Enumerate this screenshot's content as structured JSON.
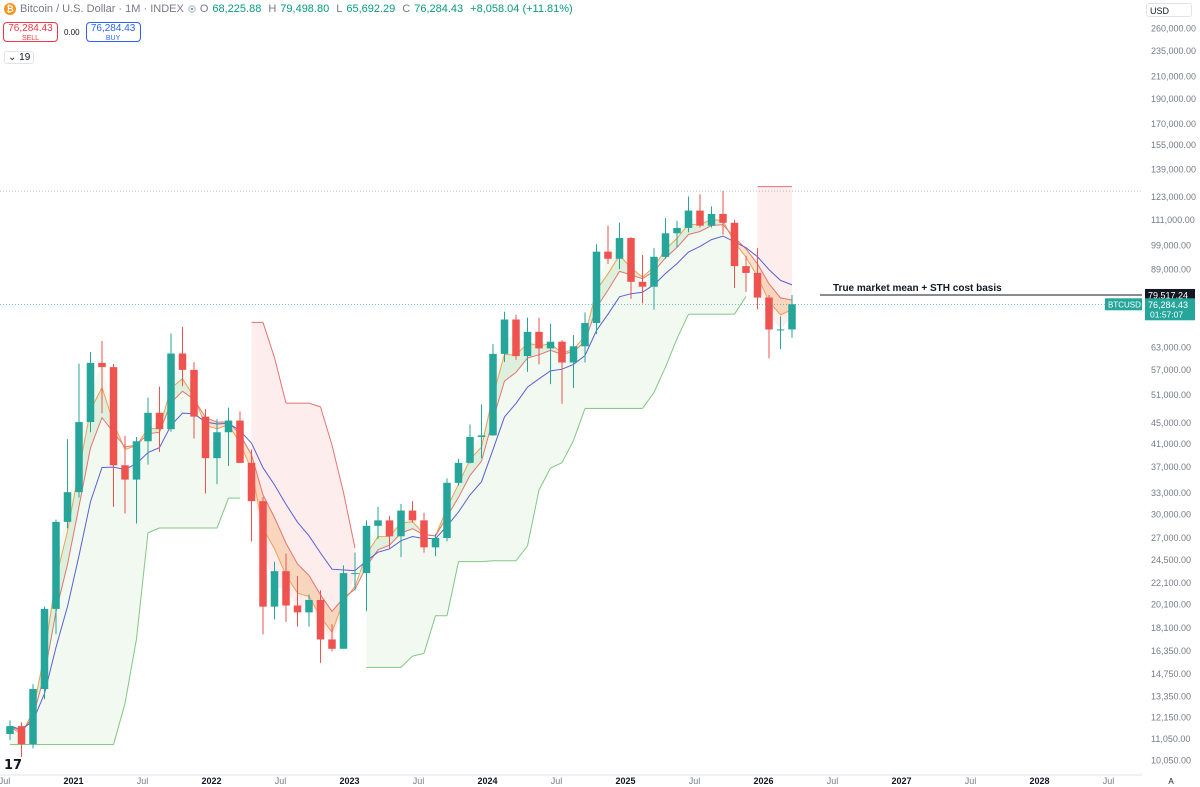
{
  "header": {
    "symbol": "Bitcoin / U.S. Dollar · 1M · INDEX",
    "open_label": "O",
    "open": "68,225.88",
    "high_label": "H",
    "high": "79,498.80",
    "low_label": "L",
    "low": "65,692.29",
    "close_label": "C",
    "close": "76,284.43",
    "change": "+8,058.04 (+11.81%)",
    "currency": "USD",
    "indicator_value": "19"
  },
  "trade": {
    "sell_price": "76,284.43",
    "sell_label": "SELL",
    "spread": "0.00",
    "buy_price": "76,284.43",
    "buy_label": "BUY"
  },
  "colors": {
    "up": "#26a69a",
    "down": "#ef5350",
    "blue_ma": "#5b5fd6",
    "red_ma": "#e57373",
    "orange_ma": "#f0a050",
    "green_band": "#81c784"
  },
  "chart_data": {
    "type": "candlestick",
    "yscale": "log",
    "ylim": [
      9500,
      295000
    ],
    "x_axis": [
      "Jul",
      "2021",
      "Jul",
      "2022",
      "Jul",
      "2023",
      "Jul",
      "2024",
      "Jul",
      "2025",
      "Jul",
      "2026",
      "Jul",
      "2027",
      "Jul",
      "2028",
      "Jul"
    ],
    "y_axis": [
      "260,000.00",
      "235,000.00",
      "210,000.00",
      "190,000.00",
      "170,000.00",
      "155,000.00",
      "139,000.00",
      "123,000.00",
      "111,000.00",
      "99,000.00",
      "89,000.00",
      "79,517.24",
      "63,000.00",
      "57,000.00",
      "51,000.00",
      "45,000.00",
      "41,000.00",
      "37,000.00",
      "33,000.00",
      "30,000.00",
      "27,000.00",
      "24,500.00",
      "22,100.00",
      "20,100.00",
      "18,100.00",
      "16,350.00",
      "14,750.00",
      "13,350.00",
      "12,150.00",
      "11,050.00",
      "10,050.00"
    ],
    "annotation": "True market mean + STH cost basis",
    "annotation_price": "79,517.24",
    "last_price_symbol": "BTCUSD",
    "last_price": "76,284.43",
    "countdown": "01:57:07",
    "log_label": "A",
    "start": "2020-08",
    "candles": [
      [
        11300,
        12000,
        11000,
        11700
      ],
      [
        11700,
        11900,
        10200,
        10800
      ],
      [
        10800,
        14100,
        10600,
        13800
      ],
      [
        13800,
        19900,
        13200,
        19700
      ],
      [
        19700,
        29300,
        17600,
        29000
      ],
      [
        29000,
        41900,
        28200,
        33100
      ],
      [
        33100,
        58600,
        32300,
        45200
      ],
      [
        45200,
        61700,
        43200,
        58800
      ],
      [
        58800,
        64800,
        47000,
        57700
      ],
      [
        57700,
        58500,
        31000,
        37300
      ],
      [
        37300,
        42500,
        30100,
        35000
      ],
      [
        35000,
        42300,
        28800,
        41500
      ],
      [
        41500,
        50400,
        37400,
        47100
      ],
      [
        47100,
        52900,
        39600,
        43800
      ],
      [
        43800,
        67000,
        43300,
        61300
      ],
      [
        61300,
        69000,
        53000,
        57000
      ],
      [
        57000,
        59000,
        42000,
        46300
      ],
      [
        46300,
        47900,
        32900,
        38500
      ],
      [
        38500,
        45800,
        34300,
        43200
      ],
      [
        43200,
        48200,
        37200,
        45500
      ],
      [
        45500,
        47400,
        37700,
        37700
      ],
      [
        37700,
        40000,
        26600,
        31800
      ],
      [
        31800,
        32400,
        17600,
        19900
      ],
      [
        19900,
        24300,
        18800,
        23300
      ],
      [
        23300,
        25200,
        18600,
        20000
      ],
      [
        20000,
        22800,
        18200,
        19400
      ],
      [
        19400,
        21000,
        18200,
        20500
      ],
      [
        20500,
        21400,
        15500,
        17200
      ],
      [
        17200,
        18400,
        16300,
        16500
      ],
      [
        16500,
        23900,
        16500,
        23100
      ],
      [
        23100,
        25300,
        21400,
        23100
      ],
      [
        23100,
        29200,
        19500,
        28500
      ],
      [
        28500,
        31000,
        26900,
        29200
      ],
      [
        29200,
        29800,
        25800,
        27200
      ],
      [
        27200,
        31400,
        24800,
        30500
      ],
      [
        30500,
        31800,
        28900,
        29200
      ],
      [
        29200,
        30200,
        25300,
        25900
      ],
      [
        25900,
        27500,
        24900,
        27000
      ],
      [
        27000,
        35200,
        26600,
        34500
      ],
      [
        34500,
        38400,
        34100,
        37700
      ],
      [
        37700,
        44700,
        37600,
        42300
      ],
      [
        42300,
        48900,
        38500,
        42600
      ],
      [
        42600,
        63900,
        42500,
        61200
      ],
      [
        61200,
        73800,
        59000,
        71300
      ],
      [
        71300,
        72800,
        59600,
        60600
      ],
      [
        60600,
        71900,
        56500,
        67500
      ],
      [
        67500,
        71900,
        58400,
        62700
      ],
      [
        62700,
        70000,
        53500,
        64600
      ],
      [
        64600,
        65100,
        49000,
        58900
      ],
      [
        58900,
        66500,
        52600,
        63300
      ],
      [
        63300,
        73600,
        58900,
        70200
      ],
      [
        70200,
        99600,
        66800,
        96400
      ],
      [
        96400,
        108300,
        91300,
        93400
      ],
      [
        93400,
        109600,
        89200,
        102400
      ],
      [
        102400,
        102800,
        78200,
        84300
      ],
      [
        84300,
        95000,
        76600,
        82500
      ],
      [
        82500,
        97900,
        74500,
        94200
      ],
      [
        94200,
        111900,
        93400,
        104600
      ],
      [
        104600,
        110600,
        98200,
        107100
      ],
      [
        107100,
        123200,
        105100,
        115700
      ],
      [
        115700,
        124400,
        107300,
        108200
      ],
      [
        108200,
        117900,
        107300,
        114000
      ],
      [
        114000,
        126200,
        104000,
        109600
      ],
      [
        109600,
        111000,
        82000,
        90400
      ],
      [
        90400,
        94600,
        80600,
        87700
      ],
      [
        87700,
        97900,
        74600,
        78600
      ],
      [
        78600,
        79500,
        60000,
        68200
      ],
      [
        68200,
        72300,
        62500,
        68225
      ],
      [
        68225,
        79498,
        65692,
        76284
      ]
    ]
  }
}
